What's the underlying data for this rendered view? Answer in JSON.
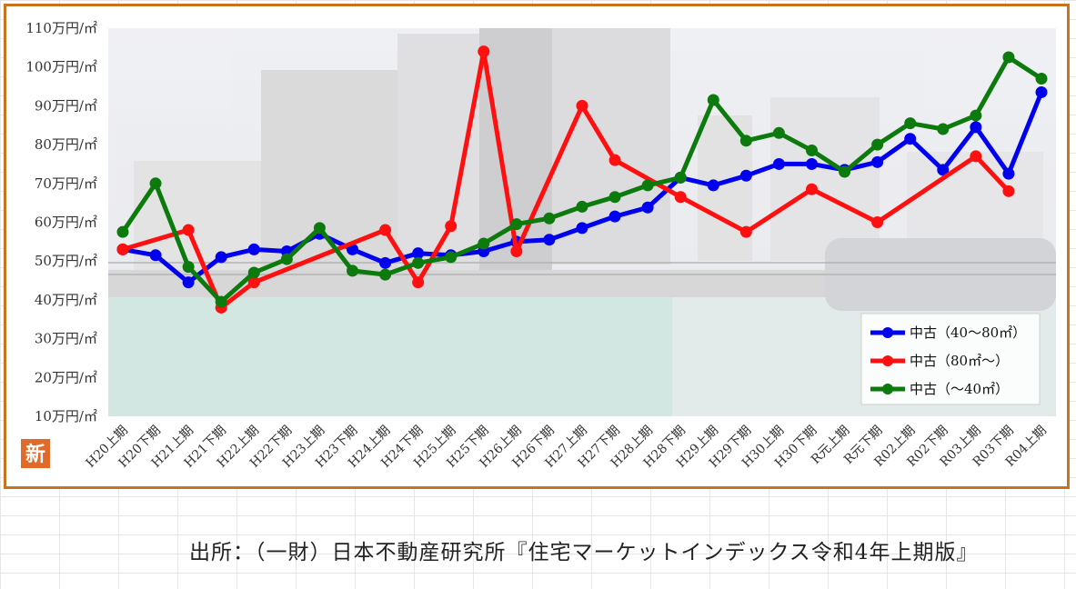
{
  "source_note": "出所：（一財）日本不動産研究所『住宅マーケットインデックス令和4年上期版』",
  "badge": "新",
  "chart_data": {
    "type": "line",
    "title": "",
    "xlabel": "",
    "ylabel": "",
    "ylim": [
      10,
      110
    ],
    "y_ticks": [
      "10万円/㎡",
      "20万円/㎡",
      "30万円/㎡",
      "40万円/㎡",
      "50万円/㎡",
      "60万円/㎡",
      "70万円/㎡",
      "80万円/㎡",
      "90万円/㎡",
      "100万円/㎡",
      "110万円/㎡"
    ],
    "y_tick_values": [
      10,
      20,
      30,
      40,
      50,
      60,
      70,
      80,
      90,
      100,
      110
    ],
    "categories": [
      "H20上期",
      "H20下期",
      "H21上期",
      "H21下期",
      "H22上期",
      "H22下期",
      "H23上期",
      "H23下期",
      "H24上期",
      "H24下期",
      "H25上期",
      "H25下期",
      "H26上期",
      "H26下期",
      "H27上期",
      "H27下期",
      "H28上期",
      "H28下期",
      "H29上期",
      "H29下期",
      "H30上期",
      "H30下期",
      "R元上期",
      "R元下期",
      "R02上期",
      "R02下期",
      "R03上期",
      "R03下期",
      "R04上期"
    ],
    "legend_position": "bottom-right",
    "grid": false,
    "series": [
      {
        "name": "中古（40～80㎡）",
        "color": "#0000ee",
        "values": [
          53,
          51.5,
          44.5,
          51,
          53,
          52.5,
          57,
          53,
          49.5,
          52,
          51.5,
          52.5,
          55,
          55.5,
          58.5,
          61.5,
          63.8,
          71.5,
          69.5,
          72,
          75,
          75,
          73.5,
          75.5,
          81.5,
          73.5,
          84.5,
          72.5,
          93.5
        ]
      },
      {
        "name": "中古（80㎡～）",
        "color": "#ff1010",
        "values": [
          53,
          null,
          58,
          38,
          44.5,
          null,
          null,
          null,
          58,
          44.5,
          59,
          104,
          52.5,
          null,
          90,
          76,
          null,
          66.5,
          null,
          57.5,
          null,
          68.5,
          null,
          60,
          null,
          null,
          77,
          68,
          null
        ]
      },
      {
        "name": "中古（～40㎡）",
        "color": "#0c7a0c",
        "values": [
          57.5,
          70,
          48.5,
          39.5,
          47,
          50.5,
          58.5,
          47.5,
          46.5,
          49.5,
          51,
          54.5,
          59.5,
          61,
          64,
          66.5,
          69.5,
          71.5,
          91.5,
          81,
          83,
          78.5,
          73,
          80,
          85.5,
          84,
          87.5,
          102.5,
          97
        ]
      }
    ]
  }
}
